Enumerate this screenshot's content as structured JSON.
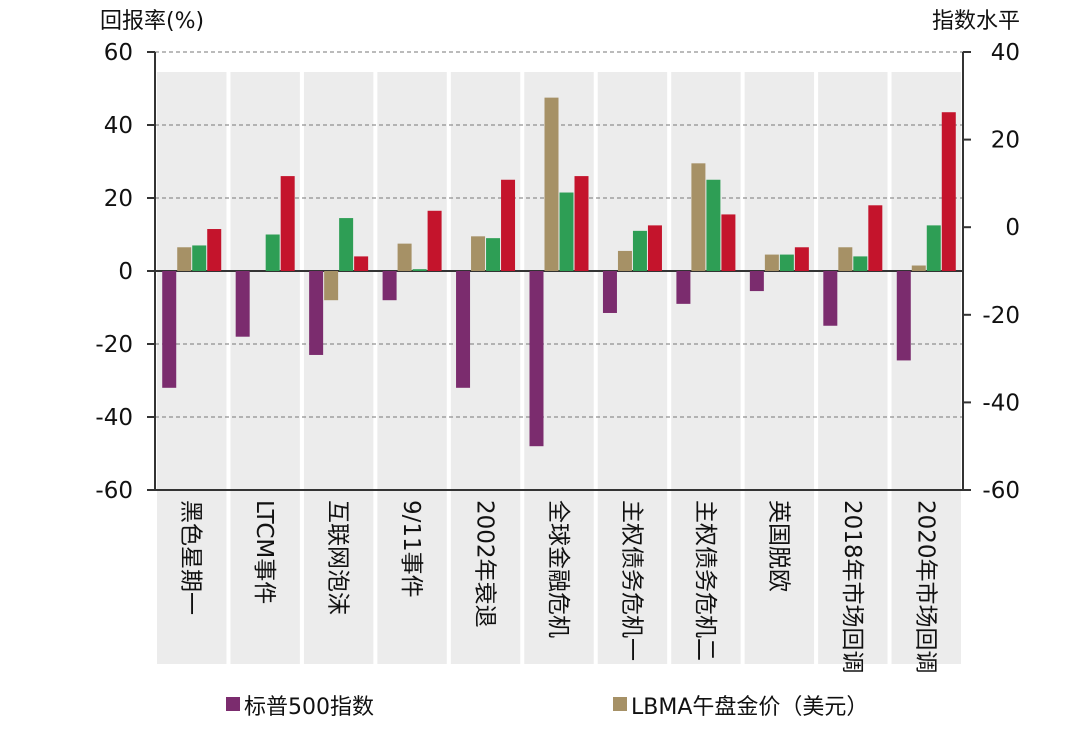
{
  "chart_data": {
    "type": "bar",
    "y_left_label": "回报率(%)",
    "y_right_label": "指数水平",
    "ylim_left": [
      -60,
      60
    ],
    "ylim_right": [
      -60,
      40
    ],
    "yticks_left": [
      "60",
      "40",
      "20",
      "0",
      "-20",
      "-40",
      "-60"
    ],
    "yticks_right": [
      "40",
      "20",
      "0",
      "-20",
      "-40",
      "-60"
    ],
    "grid": "horizontal dashed",
    "shaded_category_bands": true,
    "categories": [
      "黑色星期一",
      "LTCM事件",
      "互联网泡沫",
      "9/11事件",
      "2002年衰退",
      "全球金融危机",
      "主权债务危机一",
      "主权债务危机二",
      "英国脱欧",
      "2018年市场回调",
      "2020年市场回调"
    ],
    "series": [
      {
        "name": "标普500指数",
        "color": "#7b2c6e",
        "values": [
          -32,
          -18,
          -23,
          -8,
          -32,
          -48,
          -11.5,
          -9,
          -5.5,
          -15,
          -24.5
        ]
      },
      {
        "name": "LBMA午盘金价（美元）",
        "color": "#a69166",
        "values": [
          6.5,
          0,
          -8,
          7.5,
          9.5,
          47.5,
          5.5,
          29.5,
          4.5,
          6.5,
          1.5
        ]
      },
      {
        "color": "#2e9e55",
        "values": [
          7,
          10,
          14.5,
          0.5,
          9,
          21.5,
          11,
          25,
          4.5,
          4,
          12.5
        ]
      },
      {
        "color": "#c4142c",
        "values": [
          11.5,
          26,
          4,
          16.5,
          25,
          26,
          12.5,
          15.5,
          6.5,
          18,
          43.5
        ]
      }
    ],
    "legend": {
      "position": "bottom"
    }
  }
}
